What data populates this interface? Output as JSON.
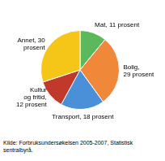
{
  "chart_data": {
    "type": "pie",
    "categories": [
      "Mat, 11 prosent",
      "Bolig,\n29 prosent",
      "Transport, 18 prosent",
      "Kultur\nog fritid,\n12 prosent",
      "Annet, 30\nprosent"
    ],
    "values": [
      11,
      29,
      18,
      12,
      30
    ],
    "colors": [
      "#5cb85c",
      "#f0883a",
      "#4a90d9",
      "#c0392b",
      "#f5c518"
    ],
    "annotations": [
      "Kilde: Forbruksundersøkelsen 2005-2007, Statistisk\nsentralbyrå."
    ]
  }
}
